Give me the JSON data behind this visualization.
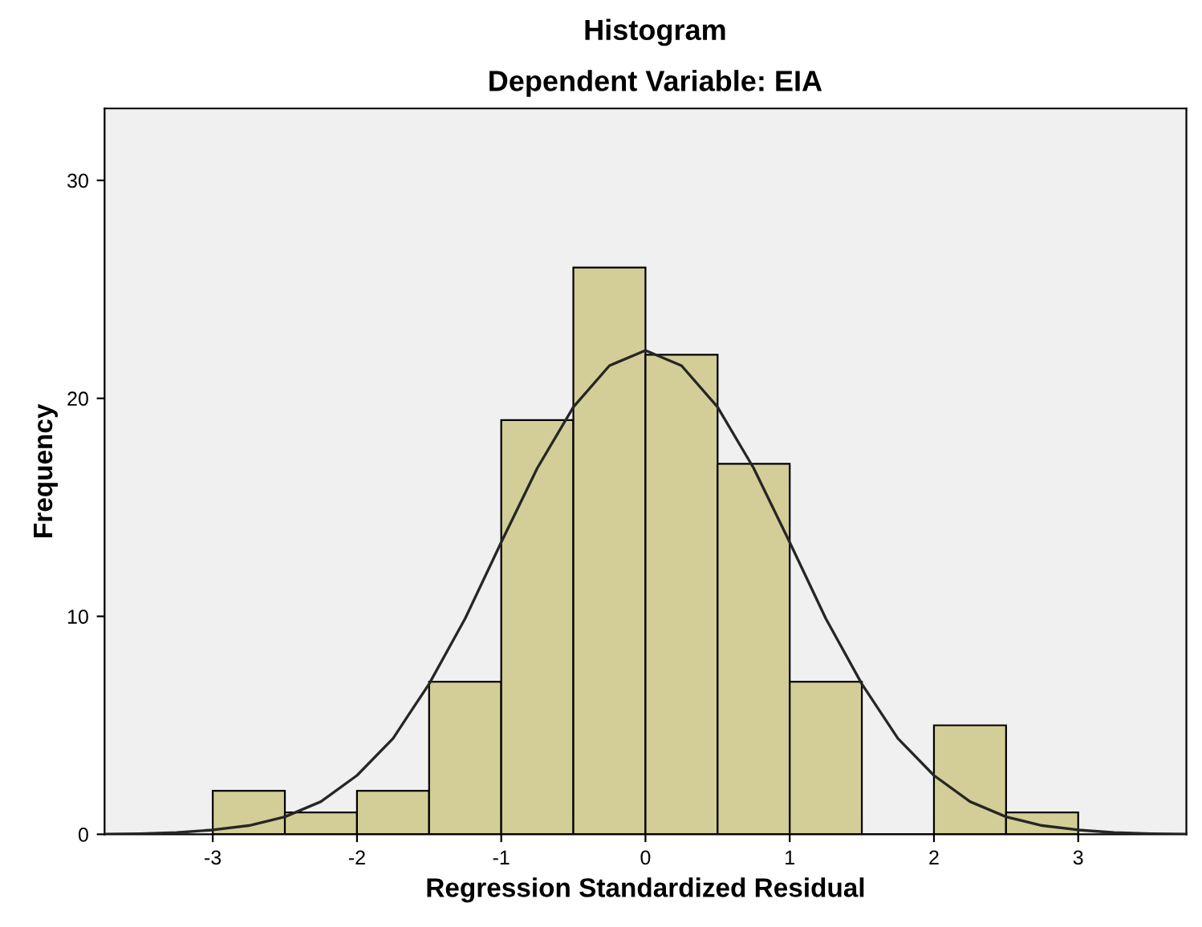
{
  "chart_data": {
    "type": "histogram",
    "title": "Histogram",
    "subtitle": "Dependent Variable: EIA",
    "xlabel": "Regression Standardized Residual",
    "ylabel": "Frequency",
    "series": [
      {
        "color": "#d3ce97",
        "bins": [
          -3,
          -2.5,
          -2,
          -1.5,
          -1,
          -0.5,
          0,
          0.5,
          1,
          1.5,
          2,
          2.5,
          3
        ],
        "values": [
          2,
          1,
          2,
          7,
          19,
          26,
          22,
          17,
          7,
          0,
          5,
          1
        ]
      },
      {
        "type": "line",
        "color": "#262626",
        "x": [
          -3.75,
          -3.5,
          -3.25,
          -3,
          -2.75,
          -2.5,
          -2.25,
          -2,
          -1.75,
          -1.5,
          -1.25,
          -1,
          -0.75,
          -0.5,
          -0.25,
          0,
          0.25,
          0.5,
          0.75,
          1,
          1.25,
          1.5,
          1.75,
          2,
          2.25,
          2.5,
          2.75,
          3,
          3.25,
          3.5,
          3.75
        ],
        "values": [
          0.01,
          0.03,
          0.08,
          0.2,
          0.4,
          0.8,
          1.5,
          2.7,
          4.4,
          6.9,
          9.9,
          13.4,
          16.8,
          19.6,
          21.5,
          22.2,
          21.5,
          19.6,
          16.8,
          13.4,
          9.9,
          6.9,
          4.4,
          2.7,
          1.5,
          0.8,
          0.4,
          0.2,
          0.08,
          0.03,
          0.01
        ]
      }
    ],
    "xlim": [
      -3.75,
      3.75
    ],
    "ylim": [
      0,
      33.3
    ],
    "xticks": [
      -3,
      -2,
      -1,
      0,
      1,
      2,
      3
    ],
    "yticks": [
      0,
      10,
      20,
      30
    ],
    "grid": false
  }
}
